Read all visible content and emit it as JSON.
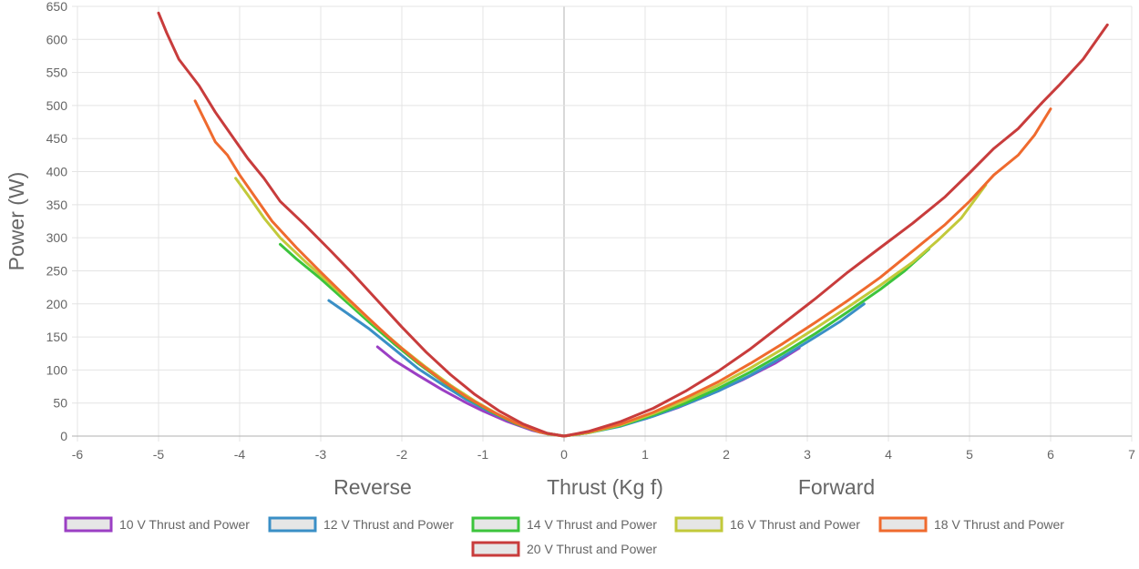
{
  "chart_data": {
    "type": "line",
    "title": "",
    "xlabel": "Thrust (Kg f)",
    "xlabel_left": "Reverse",
    "xlabel_right": "Forward",
    "ylabel": "Power (W)",
    "xlim": [
      -6,
      7
    ],
    "ylim": [
      0,
      650
    ],
    "x_ticks": [
      -6,
      -5,
      -4,
      -3,
      -2,
      -1,
      0,
      1,
      2,
      3,
      4,
      5,
      6,
      7
    ],
    "y_ticks": [
      0,
      50,
      100,
      150,
      200,
      250,
      300,
      350,
      400,
      450,
      500,
      550,
      600,
      650
    ],
    "grid": true,
    "legend_position": "bottom",
    "series": [
      {
        "name": "10 V Thrust and Power",
        "color": "#9b3fc4",
        "points": [
          [
            -2.3,
            135
          ],
          [
            -2.1,
            115
          ],
          [
            -1.8,
            92
          ],
          [
            -1.5,
            70
          ],
          [
            -1.2,
            50
          ],
          [
            -1.0,
            38
          ],
          [
            -0.7,
            22
          ],
          [
            -0.4,
            9
          ],
          [
            -0.2,
            3
          ],
          [
            0,
            0
          ],
          [
            0.3,
            5
          ],
          [
            0.6,
            14
          ],
          [
            1.0,
            26
          ],
          [
            1.4,
            43
          ],
          [
            1.8,
            63
          ],
          [
            2.2,
            85
          ],
          [
            2.6,
            110
          ],
          [
            2.9,
            133
          ]
        ]
      },
      {
        "name": "12 V Thrust and Power",
        "color": "#3a8fc6",
        "points": [
          [
            -2.9,
            205
          ],
          [
            -2.7,
            188
          ],
          [
            -2.4,
            162
          ],
          [
            -2.1,
            132
          ],
          [
            -1.8,
            102
          ],
          [
            -1.5,
            78
          ],
          [
            -1.2,
            55
          ],
          [
            -0.9,
            36
          ],
          [
            -0.6,
            19
          ],
          [
            -0.3,
            6
          ],
          [
            0,
            0
          ],
          [
            0.3,
            5
          ],
          [
            0.7,
            15
          ],
          [
            1.1,
            30
          ],
          [
            1.5,
            48
          ],
          [
            1.9,
            68
          ],
          [
            2.3,
            92
          ],
          [
            2.7,
            120
          ],
          [
            3.1,
            150
          ],
          [
            3.4,
            173
          ],
          [
            3.7,
            200
          ]
        ]
      },
      {
        "name": "14 V Thrust and Power",
        "color": "#3cc43c",
        "points": [
          [
            -3.5,
            290
          ],
          [
            -3.3,
            268
          ],
          [
            -3.0,
            238
          ],
          [
            -2.7,
            205
          ],
          [
            -2.4,
            172
          ],
          [
            -2.1,
            140
          ],
          [
            -1.8,
            110
          ],
          [
            -1.5,
            83
          ],
          [
            -1.2,
            58
          ],
          [
            -0.9,
            37
          ],
          [
            -0.6,
            19
          ],
          [
            -0.3,
            6
          ],
          [
            0,
            0
          ],
          [
            0.3,
            5
          ],
          [
            0.7,
            16
          ],
          [
            1.1,
            32
          ],
          [
            1.5,
            50
          ],
          [
            1.9,
            72
          ],
          [
            2.3,
            97
          ],
          [
            2.7,
            125
          ],
          [
            3.1,
            155
          ],
          [
            3.5,
            188
          ],
          [
            3.9,
            222
          ],
          [
            4.2,
            250
          ],
          [
            4.5,
            283
          ]
        ]
      },
      {
        "name": "16 V Thrust and Power",
        "color": "#c2c93a",
        "points": [
          [
            -4.05,
            390
          ],
          [
            -3.9,
            365
          ],
          [
            -3.7,
            330
          ],
          [
            -3.5,
            300
          ],
          [
            -3.2,
            265
          ],
          [
            -2.9,
            232
          ],
          [
            -2.6,
            198
          ],
          [
            -2.3,
            165
          ],
          [
            -2.0,
            133
          ],
          [
            -1.7,
            104
          ],
          [
            -1.4,
            77
          ],
          [
            -1.1,
            53
          ],
          [
            -0.8,
            32
          ],
          [
            -0.5,
            15
          ],
          [
            -0.2,
            3
          ],
          [
            0,
            0
          ],
          [
            0.3,
            5
          ],
          [
            0.7,
            17
          ],
          [
            1.1,
            34
          ],
          [
            1.5,
            54
          ],
          [
            1.9,
            77
          ],
          [
            2.3,
            103
          ],
          [
            2.7,
            132
          ],
          [
            3.1,
            163
          ],
          [
            3.5,
            195
          ],
          [
            3.9,
            228
          ],
          [
            4.3,
            263
          ],
          [
            4.6,
            295
          ],
          [
            4.9,
            330
          ],
          [
            5.2,
            380
          ]
        ]
      },
      {
        "name": "18 V Thrust and Power",
        "color": "#ef6a2e",
        "points": [
          [
            -4.55,
            507
          ],
          [
            -4.4,
            470
          ],
          [
            -4.3,
            445
          ],
          [
            -4.15,
            425
          ],
          [
            -4.0,
            395
          ],
          [
            -3.8,
            360
          ],
          [
            -3.6,
            325
          ],
          [
            -3.3,
            285
          ],
          [
            -3.0,
            248
          ],
          [
            -2.7,
            212
          ],
          [
            -2.4,
            177
          ],
          [
            -2.1,
            143
          ],
          [
            -1.8,
            112
          ],
          [
            -1.5,
            84
          ],
          [
            -1.2,
            59
          ],
          [
            -0.9,
            38
          ],
          [
            -0.6,
            20
          ],
          [
            -0.3,
            6
          ],
          [
            0,
            0
          ],
          [
            0.3,
            6
          ],
          [
            0.7,
            18
          ],
          [
            1.1,
            36
          ],
          [
            1.5,
            58
          ],
          [
            1.9,
            82
          ],
          [
            2.3,
            110
          ],
          [
            2.7,
            140
          ],
          [
            3.1,
            172
          ],
          [
            3.5,
            205
          ],
          [
            3.9,
            240
          ],
          [
            4.3,
            280
          ],
          [
            4.7,
            320
          ],
          [
            5.0,
            355
          ],
          [
            5.3,
            395
          ],
          [
            5.6,
            425
          ],
          [
            5.8,
            455
          ],
          [
            6.0,
            495
          ]
        ]
      },
      {
        "name": "20 V Thrust and Power",
        "color": "#c83c3c",
        "points": [
          [
            -5.0,
            640
          ],
          [
            -4.9,
            610
          ],
          [
            -4.75,
            570
          ],
          [
            -4.5,
            530
          ],
          [
            -4.3,
            490
          ],
          [
            -4.1,
            455
          ],
          [
            -3.9,
            420
          ],
          [
            -3.7,
            390
          ],
          [
            -3.5,
            355
          ],
          [
            -3.2,
            320
          ],
          [
            -2.9,
            283
          ],
          [
            -2.6,
            245
          ],
          [
            -2.3,
            205
          ],
          [
            -2.0,
            165
          ],
          [
            -1.7,
            127
          ],
          [
            -1.4,
            93
          ],
          [
            -1.1,
            63
          ],
          [
            -0.8,
            38
          ],
          [
            -0.5,
            18
          ],
          [
            -0.2,
            4
          ],
          [
            0,
            0
          ],
          [
            0.3,
            7
          ],
          [
            0.7,
            22
          ],
          [
            1.1,
            42
          ],
          [
            1.5,
            68
          ],
          [
            1.9,
            98
          ],
          [
            2.3,
            132
          ],
          [
            2.7,
            170
          ],
          [
            3.1,
            208
          ],
          [
            3.5,
            248
          ],
          [
            3.9,
            285
          ],
          [
            4.3,
            322
          ],
          [
            4.7,
            362
          ],
          [
            5.0,
            398
          ],
          [
            5.3,
            435
          ],
          [
            5.6,
            465
          ],
          [
            5.9,
            505
          ],
          [
            6.1,
            530
          ],
          [
            6.4,
            570
          ],
          [
            6.7,
            622
          ]
        ]
      }
    ]
  }
}
